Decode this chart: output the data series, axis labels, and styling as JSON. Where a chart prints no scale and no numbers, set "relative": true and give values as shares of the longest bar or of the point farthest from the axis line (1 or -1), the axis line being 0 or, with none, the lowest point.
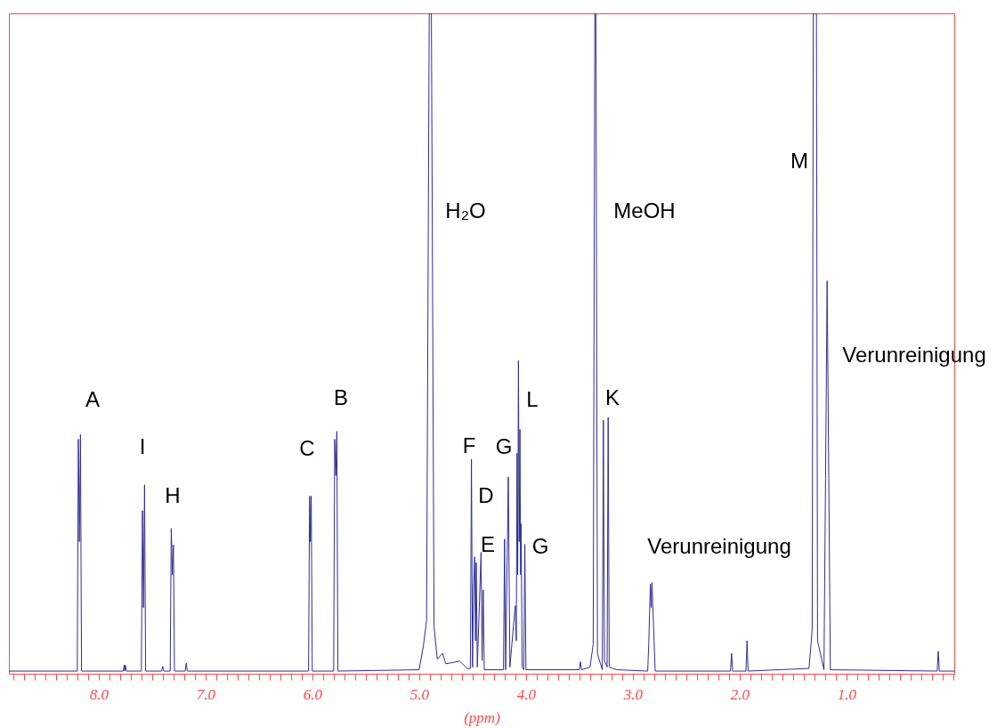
{
  "chart_data": {
    "type": "line",
    "relative": true,
    "xlabel": "(ppm)",
    "xlim": [
      8.84,
      -0.01
    ],
    "xticks": [
      {
        "value": 8.8,
        "label": null
      },
      {
        "value": 8.7,
        "label": null
      },
      {
        "value": 8.6,
        "label": null
      },
      {
        "value": 8.5,
        "label": null
      },
      {
        "value": 8.4,
        "label": null
      },
      {
        "value": 8.3,
        "label": null
      },
      {
        "value": 8.2,
        "label": null
      },
      {
        "value": 8.1,
        "label": null
      },
      {
        "value": 8,
        "label": "8.0"
      },
      {
        "value": 7.9,
        "label": null
      },
      {
        "value": 7.8,
        "label": null
      },
      {
        "value": 7.7,
        "label": null
      },
      {
        "value": 7.6,
        "label": null
      },
      {
        "value": 7.5,
        "label": null
      },
      {
        "value": 7.4,
        "label": null
      },
      {
        "value": 7.3,
        "label": null
      },
      {
        "value": 7.2,
        "label": null
      },
      {
        "value": 7.1,
        "label": null
      },
      {
        "value": 7,
        "label": "7.0"
      },
      {
        "value": 6.9,
        "label": null
      },
      {
        "value": 6.8,
        "label": null
      },
      {
        "value": 6.7,
        "label": null
      },
      {
        "value": 6.6,
        "label": null
      },
      {
        "value": 6.5,
        "label": null
      },
      {
        "value": 6.4,
        "label": null
      },
      {
        "value": 6.3,
        "label": null
      },
      {
        "value": 6.2,
        "label": null
      },
      {
        "value": 6.1,
        "label": null
      },
      {
        "value": 6,
        "label": "6.0"
      },
      {
        "value": 5.9,
        "label": null
      },
      {
        "value": 5.8,
        "label": null
      },
      {
        "value": 5.7,
        "label": null
      },
      {
        "value": 5.6,
        "label": null
      },
      {
        "value": 5.5,
        "label": null
      },
      {
        "value": 5.4,
        "label": null
      },
      {
        "value": 5.3,
        "label": null
      },
      {
        "value": 5.2,
        "label": null
      },
      {
        "value": 5.1,
        "label": null
      },
      {
        "value": 5,
        "label": "5.0"
      },
      {
        "value": 4.9,
        "label": null
      },
      {
        "value": 4.8,
        "label": null
      },
      {
        "value": 4.7,
        "label": null
      },
      {
        "value": 4.6,
        "label": null
      },
      {
        "value": 4.5,
        "label": null
      },
      {
        "value": 4.4,
        "label": null
      },
      {
        "value": 4.3,
        "label": null
      },
      {
        "value": 4.2,
        "label": null
      },
      {
        "value": 4.1,
        "label": null
      },
      {
        "value": 4,
        "label": "4.0"
      },
      {
        "value": 3.9,
        "label": null
      },
      {
        "value": 3.8,
        "label": null
      },
      {
        "value": 3.7,
        "label": null
      },
      {
        "value": 3.6,
        "label": null
      },
      {
        "value": 3.5,
        "label": null
      },
      {
        "value": 3.4,
        "label": null
      },
      {
        "value": 3.3,
        "label": null
      },
      {
        "value": 3.2,
        "label": null
      },
      {
        "value": 3.1,
        "label": null
      },
      {
        "value": 3,
        "label": "3.0"
      },
      {
        "value": 2.9,
        "label": null
      },
      {
        "value": 2.8,
        "label": null
      },
      {
        "value": 2.7,
        "label": null
      },
      {
        "value": 2.6,
        "label": null
      },
      {
        "value": 2.5,
        "label": null
      },
      {
        "value": 2.4,
        "label": null
      },
      {
        "value": 2.3,
        "label": null
      },
      {
        "value": 2.2,
        "label": null
      },
      {
        "value": 2.1,
        "label": null
      },
      {
        "value": 2,
        "label": "2.0"
      },
      {
        "value": 1.9,
        "label": null
      },
      {
        "value": 1.8,
        "label": null
      },
      {
        "value": 1.7,
        "label": null
      },
      {
        "value": 1.6,
        "label": null
      },
      {
        "value": 1.5,
        "label": null
      },
      {
        "value": 1.4,
        "label": null
      },
      {
        "value": 1.3,
        "label": null
      },
      {
        "value": 1.2,
        "label": null
      },
      {
        "value": 1.1,
        "label": null
      },
      {
        "value": 1,
        "label": "1.0"
      },
      {
        "value": 0.9,
        "label": null
      },
      {
        "value": 0.8,
        "label": null
      },
      {
        "value": 0.7,
        "label": null
      },
      {
        "value": 0.6,
        "label": null
      },
      {
        "value": 0.5,
        "label": null
      },
      {
        "value": 0.4,
        "label": null
      },
      {
        "value": 0.3,
        "label": null
      },
      {
        "value": 0.2,
        "label": null
      },
      {
        "value": 0.1,
        "label": null
      },
      {
        "value": 0,
        "label": null
      }
    ],
    "x": [
      8.84,
      8.2,
      8.19,
      8.18,
      8.17,
      8.16,
      7.77,
      7.76,
      7.755,
      7.75,
      7.74,
      7.6,
      7.59,
      7.58,
      7.57,
      7.56,
      7.41,
      7.4,
      7.39,
      7.33,
      7.32,
      7.31,
      7.3,
      7.29,
      7.19,
      7.18,
      7.17,
      6.035,
      6.025,
      6.018,
      6.01,
      6.0,
      5.8,
      5.79,
      5.78,
      5.77,
      5.76,
      5.0,
      4.96,
      4.93,
      4.905,
      4.885,
      4.86,
      4.83,
      4.78,
      4.75,
      4.62,
      4.55,
      4.52,
      4.51,
      4.5,
      4.49,
      4.48,
      4.472,
      4.465,
      4.455,
      4.42,
      4.41,
      4.4,
      4.39,
      4.21,
      4.2,
      4.19,
      4.165,
      4.15,
      4.1,
      4.09,
      4.083,
      4.077,
      4.07,
      4.063,
      4.056,
      4.05,
      4.045,
      4.035,
      4.02,
      4.01,
      4.0,
      3.5,
      3.49,
      3.48,
      3.4,
      3.37,
      3.355,
      3.345,
      3.33,
      3.285,
      3.275,
      3.265,
      3.24,
      3.23,
      3.22,
      3.15,
      2.86,
      2.85,
      2.835,
      2.827,
      2.82,
      2.8,
      2.79,
      2.085,
      2.075,
      2.065,
      1.94,
      1.93,
      1.92,
      1.35,
      1.32,
      1.31,
      1.295,
      1.28,
      1.27,
      1.21,
      1.195,
      1.18,
      1.165,
      1.15,
      0.15,
      0.14,
      0.13,
      -0.01
    ],
    "series": [
      {
        "color": "#2e2e96",
        "values": [
          0.004,
          0.004,
          0.355,
          0.2,
          0.362,
          0.004,
          0.004,
          0.013,
          0.004,
          0.013,
          0.004,
          0.004,
          0.247,
          0.1,
          0.286,
          0.004,
          0.004,
          0.011,
          0.004,
          0.004,
          0.22,
          0.15,
          0.195,
          0.004,
          0.004,
          0.016,
          0.004,
          0.004,
          0.269,
          0.2,
          0.269,
          0.004,
          0.004,
          0.355,
          0.3,
          0.367,
          0.004,
          0.006,
          0.042,
          0.08,
          1,
          1,
          0.072,
          0.022,
          0.031,
          0.015,
          0.019,
          0.008,
          0.008,
          0.325,
          0.01,
          0.132,
          0.177,
          0.05,
          0.168,
          0.01,
          0.184,
          0.02,
          0.127,
          0.006,
          0.006,
          0.204,
          0.006,
          0.298,
          0.01,
          0.103,
          0.05,
          0.334,
          0.15,
          0.474,
          0.2,
          0.37,
          0.15,
          0.227,
          0.01,
          0.006,
          0.196,
          0.006,
          0.006,
          0.018,
          0.006,
          0.01,
          0.045,
          1,
          1,
          0.03,
          0.006,
          0.384,
          0.02,
          0.01,
          0.388,
          0.01,
          0.006,
          0.004,
          0.046,
          0.136,
          0.1,
          0.138,
          0.049,
          0.004,
          0.004,
          0.031,
          0.004,
          0.004,
          0.05,
          0.004,
          0.008,
          0.067,
          1,
          1,
          1,
          0.05,
          0.006,
          0.296,
          0.595,
          0.296,
          0.006,
          0.004,
          0.034,
          0.004,
          0.004
        ]
      }
    ],
    "annotations": [
      "A",
      "I",
      "H",
      "C",
      "B",
      "H₂O",
      "F",
      "D",
      "E",
      "G",
      "L",
      "G",
      "MeOH",
      "K",
      "Verunreinigung",
      "M",
      "Verunreinigung"
    ]
  }
}
